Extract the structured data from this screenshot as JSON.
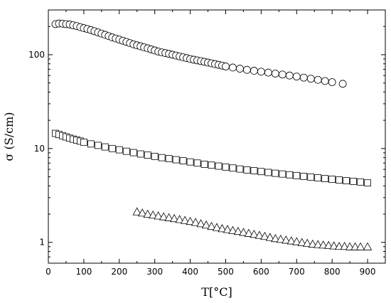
{
  "chart_data": {
    "type": "scatter",
    "title": "",
    "xlabel": "T[°C]",
    "ylabel": "σ (S/cm)",
    "xlim": [
      0,
      950
    ],
    "ylim": [
      0.6,
      300
    ],
    "yscale": "log",
    "grid": false,
    "x_ticks": [
      0,
      100,
      200,
      300,
      400,
      500,
      600,
      700,
      800,
      900
    ],
    "y_ticks": [
      1,
      10,
      100
    ],
    "series": [
      {
        "marker": "circle",
        "x": [
          20,
          30,
          40,
          50,
          60,
          70,
          80,
          90,
          100,
          110,
          120,
          130,
          140,
          150,
          160,
          170,
          180,
          190,
          200,
          210,
          220,
          230,
          240,
          250,
          260,
          270,
          280,
          290,
          300,
          310,
          320,
          330,
          340,
          350,
          360,
          370,
          380,
          390,
          400,
          410,
          420,
          430,
          440,
          450,
          460,
          470,
          480,
          490,
          500,
          520,
          540,
          560,
          580,
          600,
          620,
          640,
          660,
          680,
          700,
          720,
          740,
          760,
          780,
          800,
          830
        ],
        "y": [
          212,
          215,
          214,
          212,
          210,
          206,
          202,
          197,
          192,
          188,
          183,
          178,
          173,
          168,
          163,
          158,
          153,
          149,
          145,
          141,
          137,
          133,
          129,
          126,
          123,
          120,
          117,
          114,
          111,
          108,
          106,
          104,
          102,
          100,
          98,
          96,
          94,
          92,
          90,
          88.5,
          87,
          85.5,
          84,
          82.5,
          81,
          79.5,
          78,
          76.5,
          75,
          73,
          71,
          69,
          67.5,
          66,
          64.5,
          63,
          61.5,
          60,
          58.5,
          57,
          55.5,
          54,
          52.5,
          51,
          49
        ]
      },
      {
        "marker": "square",
        "x": [
          20,
          30,
          40,
          50,
          60,
          70,
          80,
          90,
          100,
          120,
          140,
          160,
          180,
          200,
          220,
          240,
          260,
          280,
          300,
          320,
          340,
          360,
          380,
          400,
          420,
          440,
          460,
          480,
          500,
          520,
          540,
          560,
          580,
          600,
          620,
          640,
          660,
          680,
          700,
          720,
          740,
          760,
          780,
          800,
          820,
          840,
          860,
          880,
          900
        ],
        "y": [
          14.5,
          14.1,
          13.7,
          13.3,
          12.9,
          12.6,
          12.3,
          12.0,
          11.7,
          11.2,
          10.8,
          10.4,
          10.0,
          9.7,
          9.35,
          9.05,
          8.75,
          8.5,
          8.25,
          8.0,
          7.8,
          7.6,
          7.4,
          7.2,
          7.0,
          6.8,
          6.65,
          6.5,
          6.35,
          6.2,
          6.05,
          5.92,
          5.8,
          5.68,
          5.56,
          5.45,
          5.35,
          5.25,
          5.15,
          5.05,
          4.96,
          4.87,
          4.78,
          4.7,
          4.62,
          4.54,
          4.47,
          4.4,
          4.3
        ]
      },
      {
        "marker": "triangle",
        "x": [
          250,
          265,
          280,
          295,
          310,
          325,
          340,
          355,
          370,
          385,
          400,
          415,
          430,
          445,
          460,
          475,
          490,
          505,
          520,
          535,
          550,
          565,
          580,
          595,
          610,
          625,
          640,
          655,
          670,
          685,
          700,
          715,
          730,
          745,
          760,
          775,
          790,
          805,
          820,
          835,
          850,
          865,
          880,
          900
        ],
        "y": [
          2.1,
          2.04,
          1.98,
          1.94,
          1.9,
          1.86,
          1.82,
          1.78,
          1.74,
          1.7,
          1.66,
          1.62,
          1.57,
          1.52,
          1.47,
          1.43,
          1.39,
          1.36,
          1.33,
          1.3,
          1.27,
          1.24,
          1.21,
          1.18,
          1.15,
          1.12,
          1.09,
          1.07,
          1.05,
          1.03,
          1.01,
          0.99,
          0.97,
          0.95,
          0.94,
          0.93,
          0.92,
          0.91,
          0.9,
          0.9,
          0.89,
          0.89,
          0.89,
          0.89
        ]
      }
    ]
  }
}
